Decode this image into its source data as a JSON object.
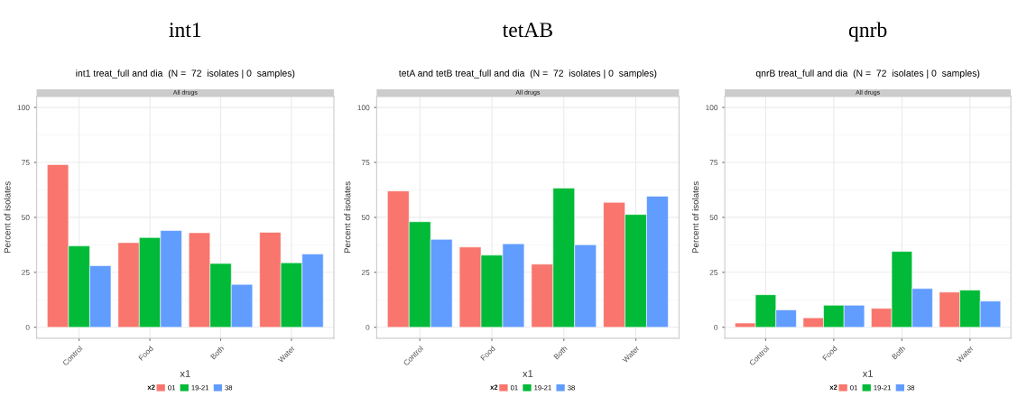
{
  "chart_data": [
    {
      "type": "bar",
      "title": "int1",
      "subtitle": "int1 treat_full and dia  (N =  72  isolates | 0  samples)",
      "annotations": [
        "All drugs"
      ],
      "xlabel": "x1",
      "ylabel": "Percent of isolates",
      "legend_title": "x2",
      "legend": "bottom",
      "grid": true,
      "categories": [
        "Control",
        "Food",
        "Both",
        "Water"
      ],
      "ylim": [
        -5,
        105
      ],
      "yticks": [
        0,
        25,
        50,
        75,
        100
      ],
      "series": [
        {
          "name": "01",
          "color": "#f8766d",
          "values": [
            74,
            38.5,
            43,
            43.2
          ]
        },
        {
          "name": "19-21",
          "color": "#00ba38",
          "values": [
            37,
            40.8,
            29,
            29.3
          ]
        },
        {
          "name": "38",
          "color": "#619cff",
          "values": [
            28,
            44,
            19.5,
            33.3
          ]
        }
      ]
    },
    {
      "type": "bar",
      "title": "tetAB",
      "subtitle": "tetA and tetB treat_full and dia  (N =  72  isolates | 0  samples)",
      "annotations": [
        "All drugs"
      ],
      "xlabel": "x1",
      "ylabel": "Percent of isolates",
      "legend_title": "x2",
      "legend": "bottom",
      "grid": true,
      "categories": [
        "Control",
        "Food",
        "Both",
        "Water"
      ],
      "ylim": [
        -5,
        105
      ],
      "yticks": [
        0,
        25,
        50,
        75,
        100
      ],
      "series": [
        {
          "name": "01",
          "color": "#f8766d",
          "values": [
            62,
            36.5,
            28.7,
            56.8
          ]
        },
        {
          "name": "19-21",
          "color": "#00ba38",
          "values": [
            48,
            32.8,
            63.3,
            51.3
          ]
        },
        {
          "name": "38",
          "color": "#619cff",
          "values": [
            40,
            38,
            37.5,
            59.6
          ]
        }
      ]
    },
    {
      "type": "bar",
      "title": "qnrb",
      "subtitle": "qnrB treat_full and dia  (N =  72  isolates | 0  samples)",
      "annotations": [
        "All drugs"
      ],
      "xlabel": "x1",
      "ylabel": "Percent of isolates",
      "legend_title": "x2",
      "legend": "bottom",
      "grid": true,
      "categories": [
        "Control",
        "Food",
        "Both",
        "Water"
      ],
      "ylim": [
        -5,
        105
      ],
      "yticks": [
        0,
        25,
        50,
        75,
        100
      ],
      "series": [
        {
          "name": "01",
          "color": "#f8766d",
          "values": [
            1.9,
            4.3,
            8.6,
            16.0
          ]
        },
        {
          "name": "19-21",
          "color": "#00ba38",
          "values": [
            14.8,
            10.0,
            34.5,
            16.9
          ]
        },
        {
          "name": "38",
          "color": "#619cff",
          "values": [
            7.9,
            10.0,
            17.6,
            11.9
          ]
        }
      ]
    }
  ]
}
